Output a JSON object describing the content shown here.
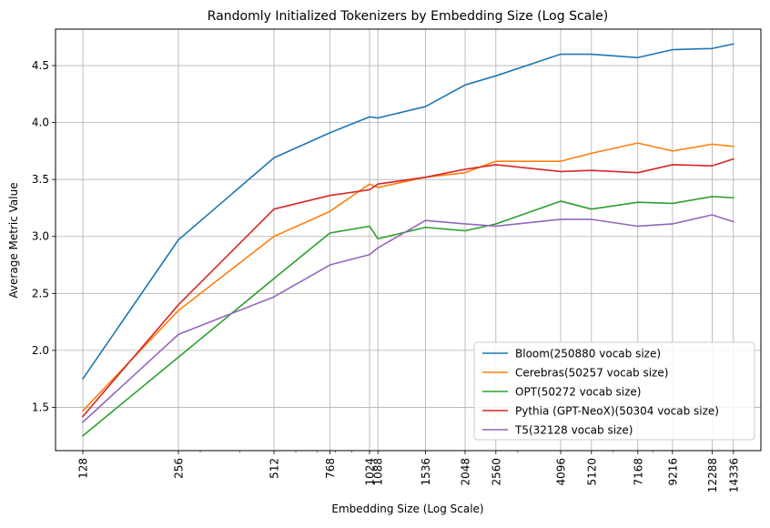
{
  "chart_data": {
    "type": "line",
    "title": "Randomly Initialized Tokenizers by Embedding Size (Log Scale)",
    "xlabel": "Embedding Size (Log Scale)",
    "ylabel": "Average Metric Value",
    "xscale": "log",
    "x": [
      128,
      256,
      512,
      768,
      1024,
      1088,
      1536,
      2048,
      2560,
      4096,
      5120,
      7168,
      9216,
      12288,
      14336
    ],
    "xticklabels": [
      "128",
      "256",
      "512",
      "768",
      "1024",
      "1088",
      "1536",
      "2048",
      "2560",
      "4096",
      "5120",
      "7168",
      "9216",
      "12288",
      "14336"
    ],
    "xlim": [
      105,
      17500
    ],
    "ylim": [
      1.12,
      4.82
    ],
    "yticks": [
      1.5,
      2.0,
      2.5,
      3.0,
      3.5,
      4.0,
      4.5
    ],
    "yticklabels": [
      "1.5",
      "2.0",
      "2.5",
      "3.0",
      "3.5",
      "4.0",
      "4.5"
    ],
    "grid": true,
    "legend_position": "bottom-right",
    "series": [
      {
        "name": "Bloom(250880 vocab size)",
        "color": "#1f77b4",
        "values": [
          1.75,
          2.97,
          3.69,
          3.91,
          4.05,
          4.04,
          4.14,
          4.33,
          4.41,
          4.6,
          4.6,
          4.57,
          4.64,
          4.65,
          4.69
        ]
      },
      {
        "name": "Cerebras(50257 vocab size)",
        "color": "#ff7f0e",
        "values": [
          1.47,
          2.35,
          3.0,
          3.22,
          3.46,
          3.43,
          3.52,
          3.56,
          3.66,
          3.66,
          3.73,
          3.82,
          3.75,
          3.81,
          3.79
        ]
      },
      {
        "name": "OPT(50272 vocab size)",
        "color": "#2ca02c",
        "values": [
          1.25,
          1.94,
          2.63,
          3.03,
          3.09,
          2.98,
          3.08,
          3.05,
          3.11,
          3.31,
          3.24,
          3.3,
          3.29,
          3.35,
          3.34
        ]
      },
      {
        "name": "Pythia (GPT-NeoX)(50304 vocab size)",
        "color": "#d62728",
        "values": [
          1.42,
          2.4,
          3.24,
          3.36,
          3.41,
          3.46,
          3.52,
          3.59,
          3.63,
          3.57,
          3.58,
          3.56,
          3.63,
          3.62,
          3.68
        ]
      },
      {
        "name": "T5(32128 vocab size)",
        "color": "#9467bd",
        "values": [
          1.37,
          2.14,
          2.47,
          2.75,
          2.84,
          2.9,
          3.14,
          3.11,
          3.09,
          3.15,
          3.15,
          3.09,
          3.11,
          3.19,
          3.13
        ]
      }
    ]
  }
}
